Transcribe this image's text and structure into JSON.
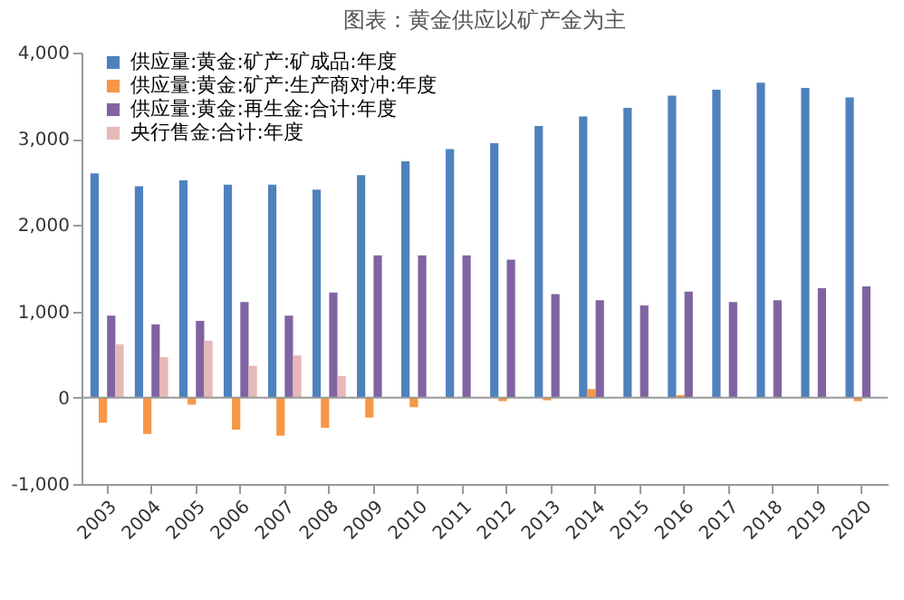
{
  "chart_data": {
    "type": "bar",
    "title": "图表：黄金供应以矿产金为主",
    "categories": [
      "2003",
      "2004",
      "2005",
      "2006",
      "2007",
      "2008",
      "2009",
      "2010",
      "2011",
      "2012",
      "2013",
      "2014",
      "2015",
      "2016",
      "2017",
      "2018",
      "2019",
      "2020"
    ],
    "series": [
      {
        "name": "供应量:黄金:矿产:矿成品:年度",
        "color": "#4f81bd",
        "values": [
          2600,
          2450,
          2520,
          2470,
          2470,
          2410,
          2580,
          2740,
          2880,
          2950,
          3150,
          3260,
          3360,
          3500,
          3570,
          3650,
          3590,
          3480
        ]
      },
      {
        "name": "供应量:黄金:矿产:生产商对冲:年度",
        "color": "#f79646",
        "values": [
          -290,
          -420,
          -80,
          -370,
          -440,
          -350,
          -230,
          -110,
          null,
          -40,
          -30,
          100,
          0,
          30,
          null,
          null,
          0,
          -40
        ]
      },
      {
        "name": "供应量:黄金:再生金:合计:年度",
        "color": "#8064a2",
        "values": [
          950,
          850,
          890,
          1110,
          950,
          1220,
          1650,
          1650,
          1650,
          1600,
          1200,
          1130,
          1070,
          1230,
          1110,
          1130,
          1270,
          1290
        ]
      },
      {
        "name": "央行售金:合计:年度",
        "color": "#e6b9b8",
        "values": [
          620,
          470,
          660,
          370,
          490,
          250,
          null,
          0,
          0,
          0,
          0,
          0,
          0,
          0,
          0,
          0,
          0,
          0
        ]
      }
    ],
    "ylim": [
      -1000,
      4000
    ],
    "yticks": [
      {
        "value": -1000,
        "label": "-1,000"
      },
      {
        "value": 0,
        "label": "0"
      },
      {
        "value": 1000,
        "label": "1,000"
      },
      {
        "value": 2000,
        "label": "2,000"
      },
      {
        "value": 3000,
        "label": "3,000"
      },
      {
        "value": 4000,
        "label": "4,000"
      }
    ],
    "legend": "top left"
  }
}
